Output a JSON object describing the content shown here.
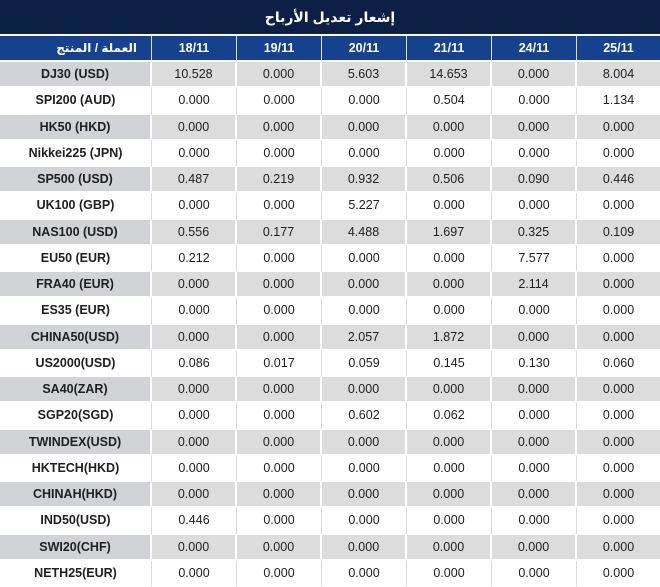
{
  "title": "إشعار تعديل الأرباح",
  "colors": {
    "title_bar_bg": "#0b2044",
    "header_bg": "#15418e",
    "header_text": "#ffffff",
    "row_alt_bg": "#dcdcdc",
    "row_alt_first_col_bg": "#d2d3d7",
    "row_bg": "#ffffff",
    "value_text": "#202020",
    "value_highlight_red": "#f01414"
  },
  "chart_data": {
    "type": "table",
    "title": "إشعار تعديل الأرباح",
    "columns": [
      "العملة / المنتج",
      "18/11",
      "19/11",
      "20/11",
      "21/11",
      "24/11",
      "25/11"
    ],
    "rows": [
      {
        "product": "DJ30 (USD)",
        "values": [
          "10.528",
          "0.000",
          "5.603",
          "14.653",
          "0.000",
          "8.004"
        ],
        "red": [
          true,
          false,
          true,
          true,
          false,
          true
        ]
      },
      {
        "product": "SPI200 (AUD)",
        "values": [
          "0.000",
          "0.000",
          "0.000",
          "0.504",
          "0.000",
          "1.134"
        ],
        "red": [
          false,
          false,
          false,
          true,
          false,
          true
        ]
      },
      {
        "product": "HK50 (HKD)",
        "values": [
          "0.000",
          "0.000",
          "0.000",
          "0.000",
          "0.000",
          "0.000"
        ],
        "red": [
          false,
          false,
          false,
          false,
          false,
          false
        ]
      },
      {
        "product": "Nikkei225 (JPN)",
        "values": [
          "0.000",
          "0.000",
          "0.000",
          "0.000",
          "0.000",
          "0.000"
        ],
        "red": [
          false,
          false,
          false,
          false,
          false,
          false
        ]
      },
      {
        "product": "SP500 (USD)",
        "values": [
          "0.487",
          "0.219",
          "0.932",
          "0.506",
          "0.090",
          "0.446"
        ],
        "red": [
          true,
          true,
          true,
          true,
          true,
          true
        ]
      },
      {
        "product": "UK100 (GBP)",
        "values": [
          "0.000",
          "0.000",
          "5.227",
          "0.000",
          "0.000",
          "0.000"
        ],
        "red": [
          false,
          false,
          true,
          false,
          false,
          false
        ]
      },
      {
        "product": "NAS100 (USD)",
        "values": [
          "0.556",
          "0.177",
          "4.488",
          "1.697",
          "0.325",
          "0.109"
        ],
        "red": [
          true,
          true,
          true,
          true,
          true,
          true
        ]
      },
      {
        "product": "EU50 (EUR)",
        "values": [
          "0.212",
          "0.000",
          "0.000",
          "0.000",
          "7.577",
          "0.000"
        ],
        "red": [
          true,
          false,
          false,
          false,
          true,
          false
        ]
      },
      {
        "product": "FRA40 (EUR)",
        "values": [
          "0.000",
          "0.000",
          "0.000",
          "0.000",
          "2.114",
          "0.000"
        ],
        "red": [
          false,
          false,
          false,
          false,
          true,
          false
        ]
      },
      {
        "product": "ES35 (EUR)",
        "values": [
          "0.000",
          "0.000",
          "0.000",
          "0.000",
          "0.000",
          "0.000"
        ],
        "red": [
          false,
          false,
          false,
          false,
          false,
          false
        ]
      },
      {
        "product": "CHINA50(USD)",
        "values": [
          "0.000",
          "0.000",
          "2.057",
          "1.872",
          "0.000",
          "0.000"
        ],
        "red": [
          false,
          false,
          true,
          true,
          false,
          false
        ]
      },
      {
        "product": "US2000(USD)",
        "values": [
          "0.086",
          "0.017",
          "0.059",
          "0.145",
          "0.130",
          "0.060"
        ],
        "red": [
          true,
          true,
          true,
          true,
          true,
          true
        ]
      },
      {
        "product": "SA40(ZAR)",
        "values": [
          "0.000",
          "0.000",
          "0.000",
          "0.000",
          "0.000",
          "0.000"
        ],
        "red": [
          false,
          false,
          false,
          false,
          false,
          false
        ]
      },
      {
        "product": "SGP20(SGD)",
        "values": [
          "0.000",
          "0.000",
          "0.602",
          "0.062",
          "0.000",
          "0.000"
        ],
        "red": [
          false,
          false,
          true,
          true,
          false,
          false
        ]
      },
      {
        "product": "TWINDEX(USD)",
        "values": [
          "0.000",
          "0.000",
          "0.000",
          "0.000",
          "0.000",
          "0.000"
        ],
        "red": [
          false,
          false,
          false,
          false,
          false,
          false
        ]
      },
      {
        "product": "HKTECH(HKD)",
        "values": [
          "0.000",
          "0.000",
          "0.000",
          "0.000",
          "0.000",
          "0.000"
        ],
        "red": [
          false,
          false,
          false,
          false,
          false,
          false
        ]
      },
      {
        "product": "CHINAH(HKD)",
        "values": [
          "0.000",
          "0.000",
          "0.000",
          "0.000",
          "0.000",
          "0.000"
        ],
        "red": [
          false,
          false,
          false,
          false,
          false,
          false
        ]
      },
      {
        "product": "IND50(USD)",
        "values": [
          "0.446",
          "0.000",
          "0.000",
          "0.000",
          "0.000",
          "0.000"
        ],
        "red": [
          true,
          false,
          false,
          false,
          false,
          false
        ]
      },
      {
        "product": "SWI20(CHF)",
        "values": [
          "0.000",
          "0.000",
          "0.000",
          "0.000",
          "0.000",
          "0.000"
        ],
        "red": [
          false,
          false,
          false,
          false,
          false,
          false
        ]
      },
      {
        "product": "NETH25(EUR)",
        "values": [
          "0.000",
          "0.000",
          "0.000",
          "0.000",
          "0.000",
          "0.000"
        ],
        "red": [
          false,
          false,
          false,
          false,
          false,
          false
        ]
      }
    ]
  }
}
